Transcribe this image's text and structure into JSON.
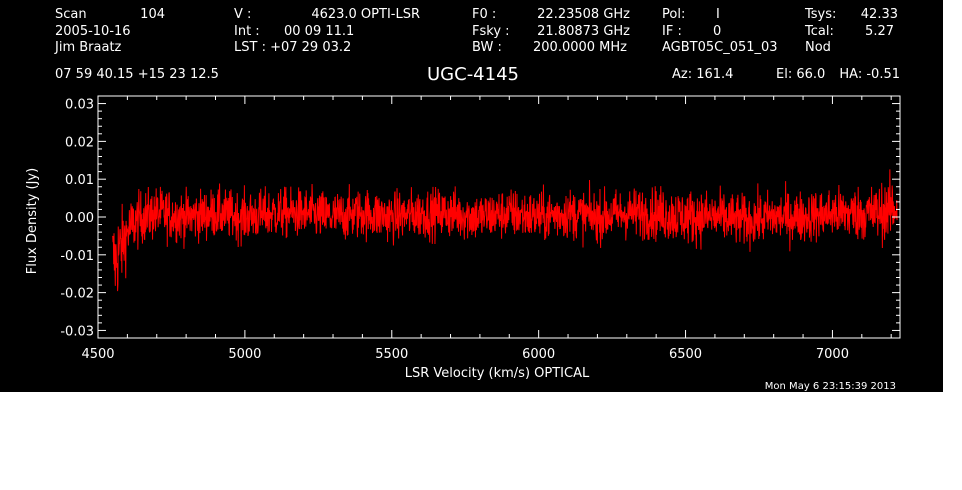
{
  "header": {
    "scan_label": "Scan",
    "scan_number": "104",
    "date": "2005-10-16",
    "observer": "Jim Braatz",
    "velocity_label": "V   :",
    "velocity_value": "4623.0 OPTI-LSR",
    "int_label": "Int  :",
    "int_value": "00 09 11.1",
    "lst_label": "LST : +07 29 03.2",
    "f0_label": "F0   :",
    "f0_value": "22.23508 GHz",
    "fsky_label": "Fsky :",
    "fsky_value": "21.80873 GHz",
    "bw_label": "BW   :",
    "bw_value": "200.0000 MHz",
    "pol_label": "Pol:",
    "pol_value": "I",
    "if_label": "IF :",
    "if_value": "0",
    "project": "AGBT05C_051_03",
    "tsys_label": "Tsys:",
    "tsys_value": "42.33",
    "tcal_label": "Tcal:",
    "tcal_value": "5.27",
    "mode": "Nod",
    "coords": "07 59 40.15  +15 23 12.5",
    "source": "UGC-4145",
    "az_label": "Az: 161.4",
    "el_label": "El:  66.0",
    "ha_label": "HA: -0.51"
  },
  "footer": {
    "timestamp": "Mon May  6 23:15:39 2013"
  },
  "colors": {
    "background": "#000000",
    "axes": "#ffffff",
    "trace": "#ff0000",
    "page": "#ffffff"
  },
  "chart_data": {
    "type": "line",
    "title": "UGC-4145",
    "xlabel": "LSR Velocity (km/s) OPTICAL",
    "ylabel": "Flux Density (Jy)",
    "xlim": [
      4500,
      7230
    ],
    "ylim": [
      -0.032,
      0.032
    ],
    "xticks": [
      4500,
      5000,
      5500,
      6000,
      6500,
      7000
    ],
    "xtick_labels": [
      "4500",
      "5000",
      "5500",
      "6000",
      "6500",
      "7000"
    ],
    "yticks": [
      -0.03,
      -0.02,
      -0.01,
      0.0,
      0.01,
      0.02,
      0.03
    ],
    "ytick_labels": [
      "-0.03",
      "-0.02",
      "-0.01",
      "0.00",
      "0.01",
      "0.02",
      "0.03"
    ],
    "grid": false,
    "legend": "none",
    "series": [
      {
        "style": "noise",
        "x": [
          4550,
          4560,
          4570,
          4580,
          4600,
          4620,
          4650,
          4700,
          4800,
          4900,
          5000,
          5100,
          5200,
          5300,
          5400,
          5500,
          5600,
          5700,
          5800,
          5900,
          6000,
          6100,
          6200,
          6300,
          6400,
          6500,
          6600,
          6700,
          6800,
          6900,
          7000,
          7100,
          7150,
          7200,
          7220
        ],
        "y": [
          -0.01,
          -0.012,
          -0.009,
          -0.008,
          -0.004,
          -0.002,
          0.0,
          0.001,
          0.0,
          0.001,
          0.0,
          0.001,
          0.001,
          0.0,
          0.001,
          0.0,
          0.001,
          0.001,
          0.0,
          0.001,
          0.0,
          0.001,
          0.0,
          0.001,
          0.001,
          0.0,
          0.0,
          -0.001,
          0.0,
          0.0,
          0.001,
          0.001,
          0.001,
          0.002,
          0.003
        ],
        "spread": [
          0.005,
          0.006,
          0.006,
          0.005,
          0.004,
          0.0038,
          0.0035,
          0.0035,
          0.0033,
          0.0033,
          0.0033,
          0.0033,
          0.0033,
          0.0033,
          0.0033,
          0.0033,
          0.0033,
          0.0033,
          0.0033,
          0.0033,
          0.0033,
          0.0033,
          0.0033,
          0.0033,
          0.0035,
          0.0036,
          0.0035,
          0.0034,
          0.0034,
          0.0034,
          0.0034,
          0.0036,
          0.0038,
          0.004,
          0.0045
        ]
      }
    ]
  }
}
